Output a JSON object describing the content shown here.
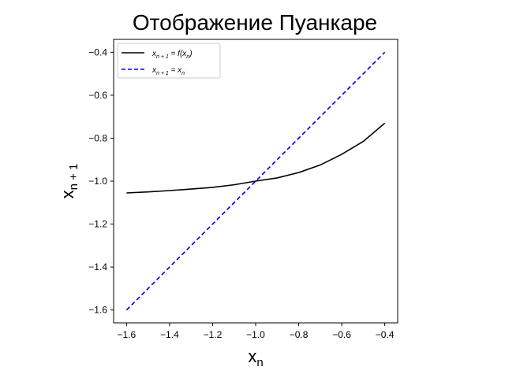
{
  "chart_data": {
    "type": "line",
    "title": "Отображение Пуанкаре",
    "xlabel": {
      "base": "x",
      "sub": "n"
    },
    "ylabel": {
      "base": "x",
      "sub": "n + 1"
    },
    "xlim": [
      -1.6,
      -0.4
    ],
    "ylim": [
      -1.6,
      -0.4
    ],
    "xticks": [
      -1.6,
      -1.4,
      -1.2,
      -1.0,
      -0.8,
      -0.6,
      -0.4
    ],
    "yticks": [
      -1.6,
      -1.4,
      -1.2,
      -1.0,
      -0.8,
      -0.6,
      -0.4
    ],
    "xtick_labels": [
      "−1.6",
      "−1.4",
      "−1.2",
      "−1.0",
      "−0.8",
      "−0.6",
      "−0.4"
    ],
    "ytick_labels": [
      "−1.6",
      "−1.4",
      "−1.2",
      "−1.0",
      "−0.8",
      "−0.6",
      "−0.4"
    ],
    "grid": false,
    "legend_position": "top-left",
    "series": [
      {
        "legend": {
          "lhs_base": "x",
          "lhs_sub": "n + 1",
          "rhs": "= f(x",
          "rhs_sub": "n",
          "rhs_end": ")"
        },
        "style": "solid",
        "color": "#000000",
        "x": [
          -1.6,
          -1.5,
          -1.4,
          -1.3,
          -1.2,
          -1.1,
          -1.0,
          -0.9,
          -0.8,
          -0.7,
          -0.6,
          -0.5,
          -0.4
        ],
        "y": [
          -1.055,
          -1.05,
          -1.044,
          -1.037,
          -1.029,
          -1.017,
          -1.0,
          -0.985,
          -0.96,
          -0.925,
          -0.875,
          -0.815,
          -0.73
        ]
      },
      {
        "legend": {
          "lhs_base": "x",
          "lhs_sub": "n + 1",
          "rhs": "= x",
          "rhs_sub": "n",
          "rhs_end": ""
        },
        "style": "dashed",
        "color": "#0000ee",
        "x": [
          -1.6,
          -0.4
        ],
        "y": [
          -1.6,
          -0.4
        ]
      }
    ]
  }
}
